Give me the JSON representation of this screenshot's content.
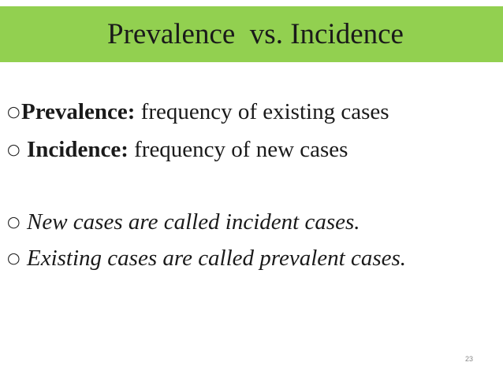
{
  "slide": {
    "title": "Prevalence  vs. Incidence",
    "bullets": [
      {
        "term": "Prevalence:",
        "text": " frequency of existing cases"
      },
      {
        "term": "Incidence:",
        "text": " frequency of new cases"
      },
      {
        "text": "New cases are called incident cases."
      },
      {
        "text": "Existing cases are called prevalent cases."
      }
    ],
    "bullet_marker": "○",
    "page_number": "23",
    "colors": {
      "title_bar": "#92d050",
      "text": "#1a1a1a"
    }
  }
}
